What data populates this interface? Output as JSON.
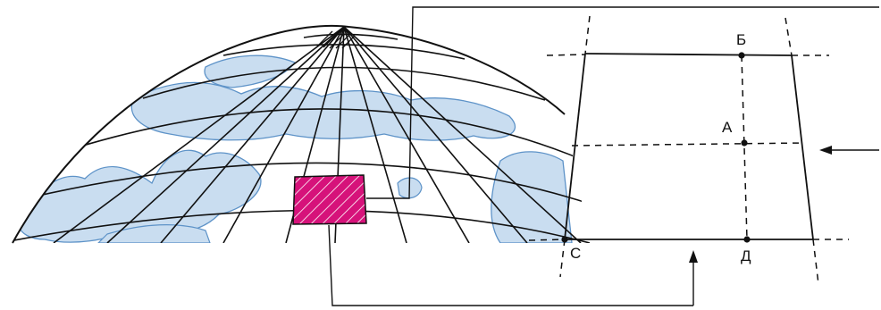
{
  "labels": {
    "b": "Б",
    "a": "А",
    "c": "С",
    "d": "Д"
  },
  "colors": {
    "highlight": "#d6127a",
    "land": "#c9ddf0",
    "coast": "#5e93c8",
    "line": "#111111"
  }
}
